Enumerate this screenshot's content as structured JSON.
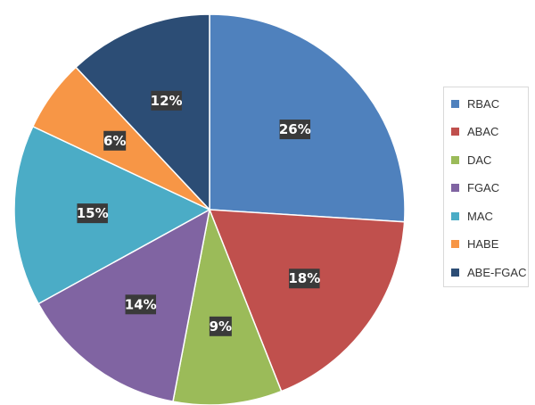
{
  "chart_data": {
    "type": "pie",
    "title": "",
    "legend_position": "right",
    "slices": [
      {
        "name": "RBAC",
        "value": 26,
        "label": "26%",
        "color": "#4f81bd"
      },
      {
        "name": "ABAC",
        "value": 18,
        "label": "18%",
        "color": "#c0504d"
      },
      {
        "name": "DAC",
        "value": 9,
        "label": "9%",
        "color": "#9bbb59"
      },
      {
        "name": "FGAC",
        "value": 14,
        "label": "14%",
        "color": "#8064a2"
      },
      {
        "name": "MAC",
        "value": 15,
        "label": "15%",
        "color": "#4bacc6"
      },
      {
        "name": "HABE",
        "value": 6,
        "label": "6%",
        "color": "#f79646"
      },
      {
        "name": "ABE-FGAC",
        "value": 12,
        "label": "12%",
        "color": "#2c4d75"
      }
    ]
  }
}
